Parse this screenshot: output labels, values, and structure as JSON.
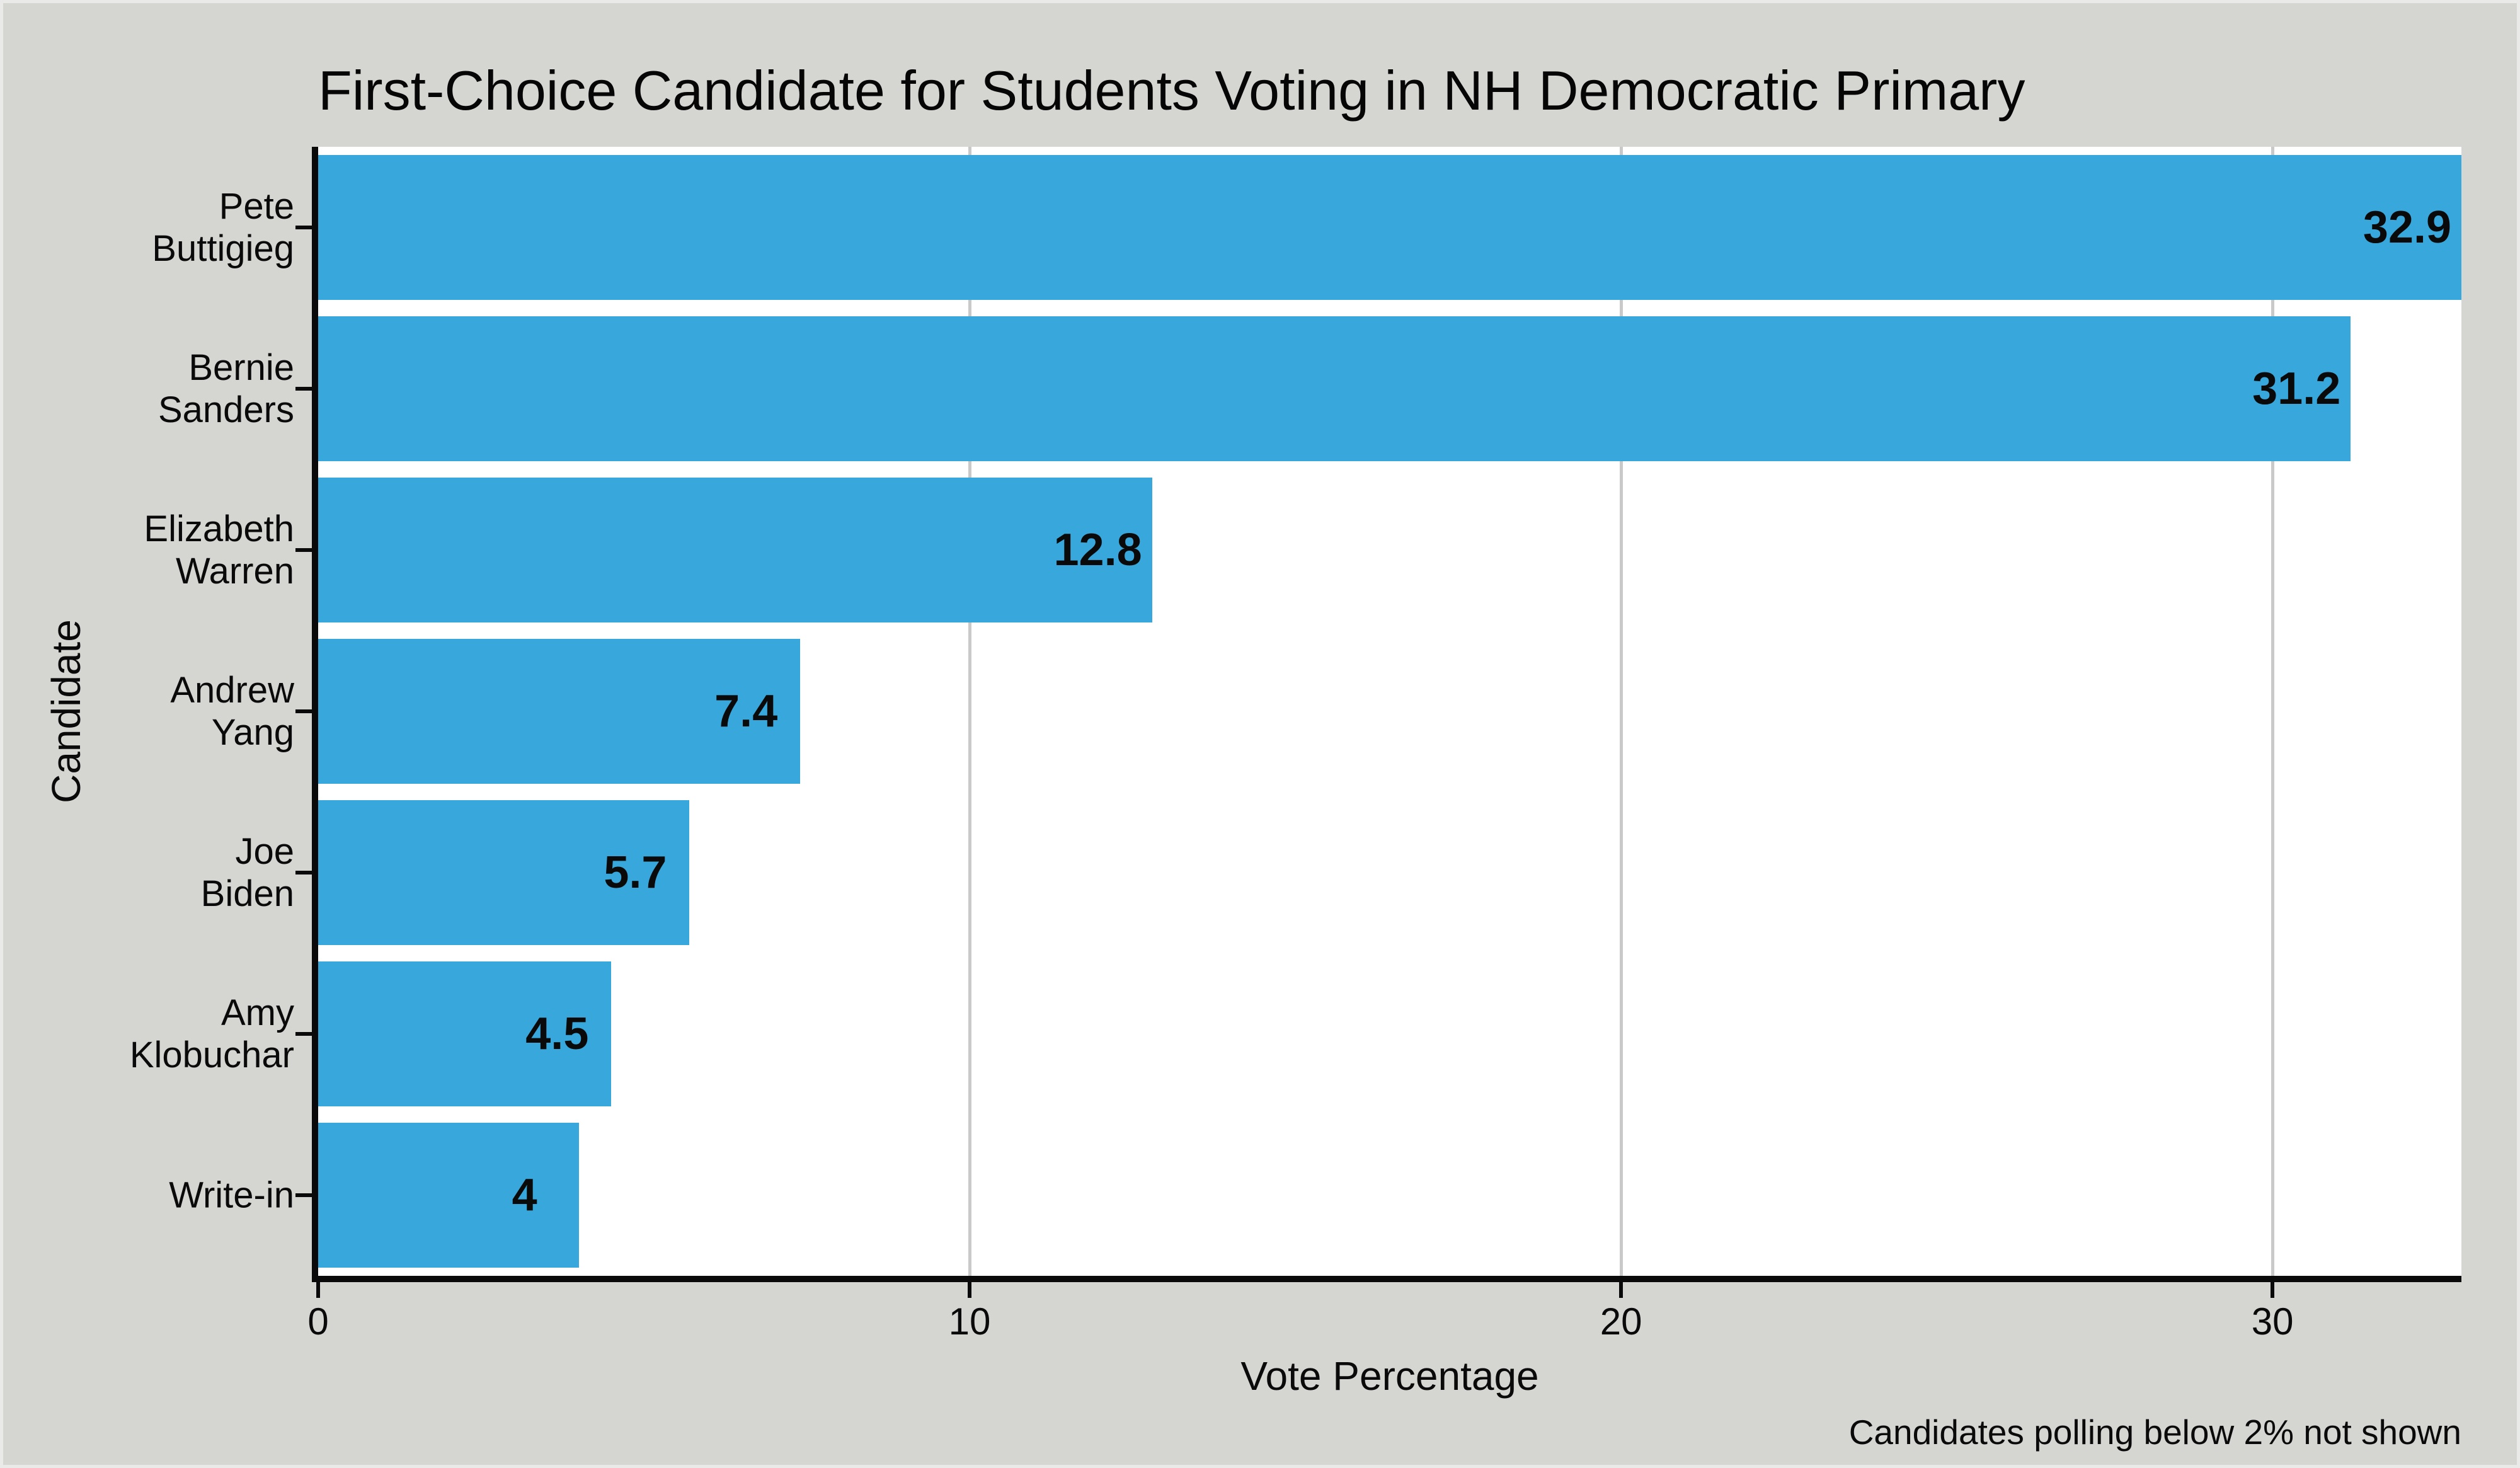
{
  "figure": {
    "title": "First-Choice Candidate for Students Voting in NH Democratic Primary",
    "footnote": "Candidates polling below 2% not shown"
  },
  "chart_data": {
    "type": "bar",
    "orientation": "horizontal",
    "title": "First-Choice Candidate for Students Voting in NH Democratic Primary",
    "xlabel": "Vote Percentage",
    "ylabel": "Candidate",
    "categories": [
      "Pete Buttigieg",
      "Bernie Sanders",
      "Elizabeth Warren",
      "Andrew Yang",
      "Joe Biden",
      "Amy Klobuchar",
      "Write-in"
    ],
    "category_label_lines": [
      [
        "Pete",
        "Buttigieg"
      ],
      [
        "Bernie",
        "Sanders"
      ],
      [
        "Elizabeth",
        "Warren"
      ],
      [
        "Andrew",
        "Yang"
      ],
      [
        "Joe",
        "Biden"
      ],
      [
        "Amy",
        "Klobuchar"
      ],
      [
        "Write-in"
      ]
    ],
    "values": [
      32.9,
      31.2,
      12.8,
      7.4,
      5.7,
      4.5,
      4
    ],
    "value_labels": [
      "32.9",
      "31.2",
      "12.8",
      "7.4",
      "5.7",
      "4.5",
      "4"
    ],
    "x_ticks": [
      0,
      10,
      20,
      30
    ],
    "x_tick_labels": [
      "0",
      "10",
      "20",
      "30"
    ],
    "xlim": [
      0,
      32.9
    ],
    "grid": "vertical-major-only",
    "legend": "none",
    "annotation": "Candidates polling below 2% not shown",
    "colors": {
      "bar": "#38a7db",
      "panel_background": "#ffffff",
      "figure_background": "#d5d5d2",
      "gridline": "#c9c9c9",
      "axis": "#0a0a0a",
      "text": "#0a0a0a"
    }
  }
}
